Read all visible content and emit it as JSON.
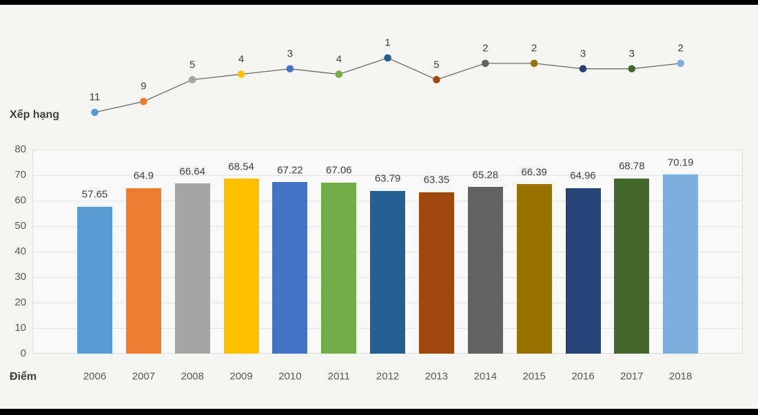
{
  "page": {
    "background_color": "#f5f5f4",
    "frame_strip_color": "#000000"
  },
  "line_chart": {
    "axis_label": "Xếp hạng",
    "line_color": "#6b6b6b",
    "label_color": "#404040"
  },
  "bar_chart": {
    "axis_label": "Điểm",
    "tick_labels": [
      "80",
      "70",
      "60",
      "50",
      "40",
      "30",
      "20",
      "10",
      "0"
    ],
    "gridline_color": "#e3e3e3",
    "border_color": "#dcdcdc"
  },
  "chart_data": [
    {
      "type": "line",
      "title": "Xếp hạng",
      "x": [
        "2006",
        "2007",
        "2008",
        "2009",
        "2010",
        "2011",
        "2012",
        "2013",
        "2014",
        "2015",
        "2016",
        "2017",
        "2018"
      ],
      "values": [
        11,
        9,
        5,
        4,
        3,
        4,
        1,
        5,
        2,
        2,
        3,
        3,
        2
      ],
      "labels": [
        "11",
        "9",
        "5",
        "4",
        "3",
        "4",
        "1",
        "5",
        "2",
        "2",
        "3",
        "3",
        "2"
      ],
      "axis_note": "inverted axis: rank 1 plotted highest, no visible axis lines",
      "point_colors": [
        "#5B9BD5",
        "#ED7D31",
        "#A5A5A5",
        "#FFC000",
        "#4472C4",
        "#70AD47",
        "#255E91",
        "#9E480E",
        "#636363",
        "#997300",
        "#264478",
        "#43682B",
        "#7CAFDD"
      ],
      "legend": "none",
      "grid": false
    },
    {
      "type": "bar",
      "title": "Điểm",
      "categories": [
        "2006",
        "2007",
        "2008",
        "2009",
        "2010",
        "2011",
        "2012",
        "2013",
        "2014",
        "2015",
        "2016",
        "2017",
        "2018"
      ],
      "values": [
        57.65,
        64.9,
        66.64,
        68.54,
        67.22,
        67.06,
        63.79,
        63.35,
        65.28,
        66.39,
        64.96,
        68.78,
        70.19
      ],
      "labels": [
        "57.65",
        "64.9",
        "66.64",
        "68.54",
        "67.22",
        "67.06",
        "63.79",
        "63.35",
        "65.28",
        "66.39",
        "64.96",
        "68.78",
        "70.19"
      ],
      "colors": [
        "#5B9BD5",
        "#ED7D31",
        "#A5A5A5",
        "#FFC000",
        "#4472C4",
        "#70AD47",
        "#255E91",
        "#9E480E",
        "#636363",
        "#997300",
        "#264478",
        "#43682B",
        "#7CAFDD"
      ],
      "xlabel": "",
      "ylabel": "",
      "ylim": [
        0,
        80
      ],
      "yticks": [
        0,
        10,
        20,
        30,
        40,
        50,
        60,
        70,
        80
      ],
      "grid": true,
      "legend": "none"
    }
  ]
}
